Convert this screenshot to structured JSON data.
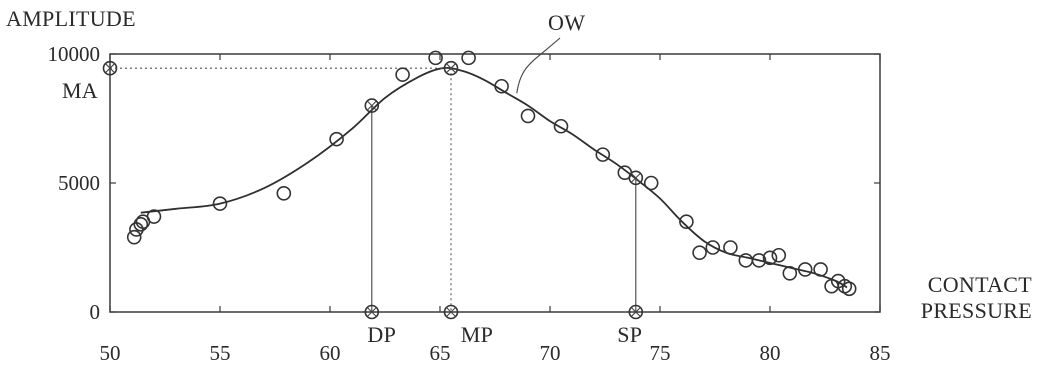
{
  "chart_data": {
    "type": "scatter",
    "ylabel": "AMPLITUDE",
    "xlabel": [
      "CONTACT",
      "PRESSURE"
    ],
    "xlim": [
      50,
      85
    ],
    "ylim": [
      0,
      10000
    ],
    "xticks": [
      "50",
      "55",
      "60",
      "65",
      "70",
      "75",
      "80",
      "85"
    ],
    "yticks": [
      "0",
      "5000",
      "10000"
    ],
    "grid": false,
    "points": [
      {
        "x": 51.1,
        "y": 2900
      },
      {
        "x": 51.2,
        "y": 3200
      },
      {
        "x": 51.4,
        "y": 3400
      },
      {
        "x": 51.5,
        "y": 3500
      },
      {
        "x": 52.0,
        "y": 3700
      },
      {
        "x": 55.0,
        "y": 4200
      },
      {
        "x": 57.9,
        "y": 4600
      },
      {
        "x": 60.3,
        "y": 6700
      },
      {
        "x": 63.3,
        "y": 9200
      },
      {
        "x": 64.8,
        "y": 9850
      },
      {
        "x": 66.3,
        "y": 9850
      },
      {
        "x": 67.8,
        "y": 8750
      },
      {
        "x": 69.0,
        "y": 7600
      },
      {
        "x": 70.5,
        "y": 7200
      },
      {
        "x": 72.4,
        "y": 6100
      },
      {
        "x": 73.4,
        "y": 5400
      },
      {
        "x": 74.6,
        "y": 5000
      },
      {
        "x": 76.2,
        "y": 3500
      },
      {
        "x": 76.8,
        "y": 2300
      },
      {
        "x": 77.4,
        "y": 2500
      },
      {
        "x": 78.2,
        "y": 2500
      },
      {
        "x": 78.9,
        "y": 2000
      },
      {
        "x": 79.5,
        "y": 2000
      },
      {
        "x": 80.0,
        "y": 2100
      },
      {
        "x": 80.4,
        "y": 2200
      },
      {
        "x": 80.9,
        "y": 1500
      },
      {
        "x": 81.6,
        "y": 1650
      },
      {
        "x": 82.3,
        "y": 1650
      },
      {
        "x": 82.8,
        "y": 1000
      },
      {
        "x": 83.1,
        "y": 1200
      },
      {
        "x": 83.4,
        "y": 1000
      },
      {
        "x": 83.6,
        "y": 900
      }
    ],
    "envelope": {
      "name": "OW",
      "x": [
        51.4,
        53,
        55,
        57,
        59,
        61,
        62.5,
        64,
        65.1,
        66,
        67,
        68,
        69,
        70,
        71,
        72,
        73,
        74,
        75,
        76,
        77,
        78,
        79,
        80,
        81,
        82,
        83,
        83.5
      ],
      "y": [
        3850,
        4000,
        4200,
        4800,
        5800,
        7100,
        8300,
        9100,
        9450,
        9350,
        9000,
        8500,
        8000,
        7400,
        6900,
        6300,
        5750,
        5100,
        4400,
        3500,
        2750,
        2300,
        2100,
        1900,
        1700,
        1500,
        1200,
        950
      ]
    },
    "markers": [
      {
        "label": "DP",
        "x": 61.9,
        "y": 8000
      },
      {
        "label": "MP",
        "x": 65.5,
        "y": 9450
      },
      {
        "label": "SP",
        "x": 73.9,
        "y": 5200
      }
    ],
    "max_amplitude": {
      "label": "MA",
      "value": 9450
    }
  }
}
